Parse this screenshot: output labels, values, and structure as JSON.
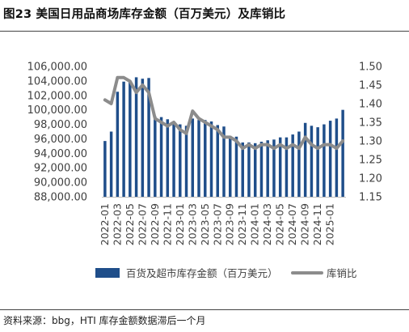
{
  "figure": {
    "title": "图23 美国日用品商场库存金额（百万美元）及库销比",
    "source": "资料来源：bbg，HTI 库存金额数据滞后一个月"
  },
  "colors": {
    "bar": "#1f4e8a",
    "line": "#8c8c8c",
    "axis_text": "#404040"
  },
  "chart_data": {
    "type": "bar",
    "title": "",
    "xlabel": "",
    "ylabel": "",
    "grid": false,
    "legend_position": "bottom",
    "y_left": {
      "min": 88000,
      "max": 106000,
      "ticks": [
        "88,000.00",
        "90,000.00",
        "92,000.00",
        "94,000.00",
        "96,000.00",
        "98,000.00",
        "100,000.00",
        "102,000.00",
        "104,000.00",
        "106,000.00"
      ]
    },
    "y_right": {
      "min": 1.15,
      "max": 1.5,
      "ticks": [
        "1.15",
        "1.20",
        "1.25",
        "1.30",
        "1.35",
        "1.40",
        "1.45",
        "1.50"
      ]
    },
    "x_tick_labels": [
      "2022-01",
      "2022-03",
      "2022-05",
      "2022-07",
      "2022-09",
      "2022-11",
      "2023-01",
      "2023-03",
      "2023-05",
      "2023-07",
      "2023-09",
      "2023-11",
      "2024-01",
      "2024-03",
      "2024-05",
      "2024-07",
      "2024-09",
      "2024-11",
      "2025-01"
    ],
    "categories": [
      "2022-01",
      "2022-02",
      "2022-03",
      "2022-04",
      "2022-05",
      "2022-06",
      "2022-07",
      "2022-08",
      "2022-09",
      "2022-10",
      "2022-11",
      "2022-12",
      "2023-01",
      "2023-02",
      "2023-03",
      "2023-04",
      "2023-05",
      "2023-06",
      "2023-07",
      "2023-08",
      "2023-09",
      "2023-10",
      "2023-11",
      "2023-12",
      "2024-01",
      "2024-02",
      "2024-03",
      "2024-04",
      "2024-05",
      "2024-06",
      "2024-07",
      "2024-08",
      "2024-09",
      "2024-10",
      "2024-11",
      "2024-12",
      "2025-01",
      "2025-02",
      "2025-03"
    ],
    "series": [
      {
        "name": "百货及超市库存金额（百万美元）",
        "type": "bar",
        "axis": "left",
        "values": [
          95700,
          97000,
          102500,
          103900,
          104000,
          104500,
          104300,
          104400,
          99100,
          99000,
          98700,
          98300,
          98000,
          97800,
          98800,
          98600,
          98600,
          98400,
          97900,
          97700,
          96400,
          96300,
          95500,
          95500,
          95400,
          95600,
          95800,
          95900,
          96200,
          96200,
          96600,
          97000,
          98200,
          97800,
          97600,
          98000,
          98500,
          98800,
          100000
        ]
      },
      {
        "name": "库销比",
        "type": "line",
        "axis": "right",
        "values": [
          1.41,
          1.4,
          1.47,
          1.47,
          1.46,
          1.43,
          1.45,
          1.43,
          1.36,
          1.35,
          1.34,
          1.35,
          1.33,
          1.32,
          1.38,
          1.36,
          1.35,
          1.34,
          1.33,
          1.31,
          1.31,
          1.3,
          1.28,
          1.29,
          1.28,
          1.29,
          1.29,
          1.28,
          1.29,
          1.28,
          1.29,
          1.28,
          1.31,
          1.29,
          1.28,
          1.29,
          1.29,
          1.28,
          1.3
        ]
      }
    ]
  }
}
